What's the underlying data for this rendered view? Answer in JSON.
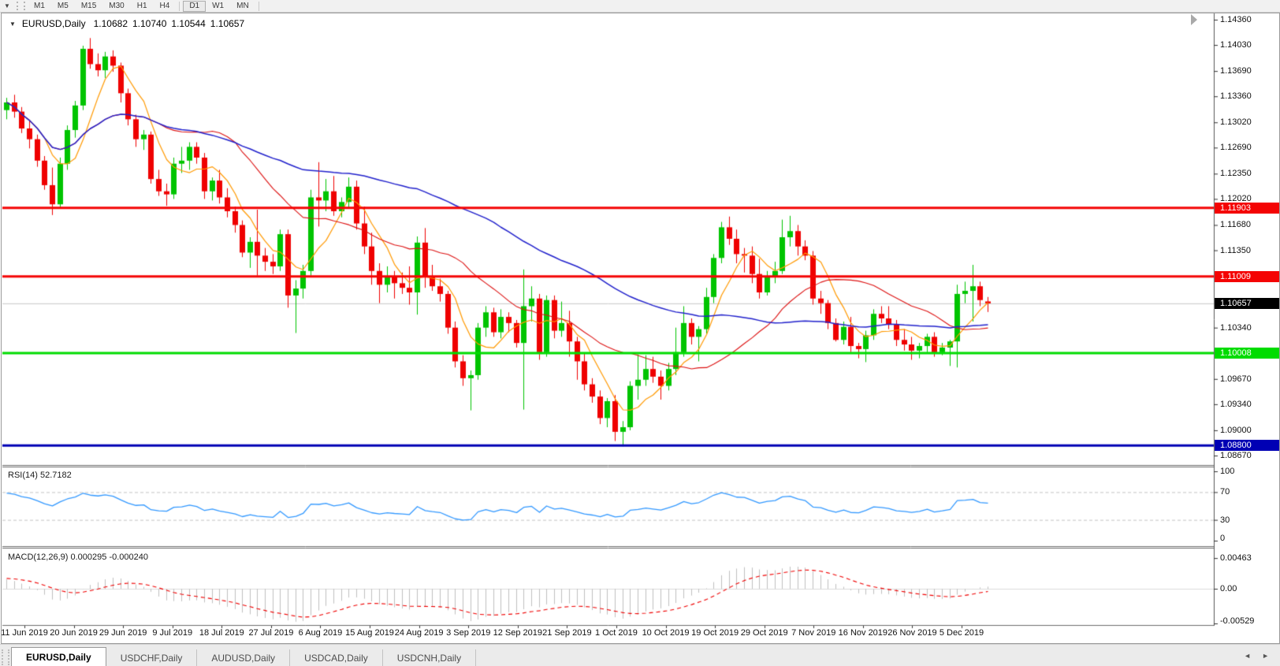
{
  "toolbar": {
    "dropdown_icon": "▼",
    "timeframes": [
      {
        "label": "M1",
        "active": false
      },
      {
        "label": "M5",
        "active": false
      },
      {
        "label": "M15",
        "active": false
      },
      {
        "label": "M30",
        "active": false
      },
      {
        "label": "H1",
        "active": false
      },
      {
        "label": "H4",
        "active": false
      },
      {
        "label": "D1",
        "active": true
      },
      {
        "label": "W1",
        "active": false
      },
      {
        "label": "MN",
        "active": false
      }
    ]
  },
  "chart": {
    "title": "EURUSD,Daily",
    "title_icon": "▼",
    "ohlc": {
      "open": "1.10682",
      "high": "1.10740",
      "low": "1.10544",
      "close": "1.10657"
    }
  },
  "rsi_panel": {
    "label": "RSI(14)",
    "value": "52.7182",
    "axis_labels": [
      "100",
      "70",
      "30",
      "0"
    ],
    "axis_values": [
      100,
      70,
      30,
      0
    ],
    "levels": [
      70,
      30
    ],
    "line_color": "#3399ff"
  },
  "macd_panel": {
    "label": "MACD(12,26,9)",
    "value_main": "0.000295",
    "value_signal": "-0.000240",
    "axis_labels": [
      "0.00463",
      "0.00",
      "-0.00529"
    ],
    "axis_values": [
      0.00463,
      0.0,
      -0.00529
    ],
    "histogram_color": "#c0c0c0",
    "signal_color": "#f00000"
  },
  "tabs": [
    {
      "label": "EURUSD,Daily",
      "active": true
    },
    {
      "label": "USDCHF,Daily",
      "active": false
    },
    {
      "label": "AUDUSD,Daily",
      "active": false
    },
    {
      "label": "USDCAD,Daily",
      "active": false
    },
    {
      "label": "USDCNH,Daily",
      "active": false
    }
  ],
  "tab_arrows": {
    "left": "◄",
    "right": "►"
  },
  "colors": {
    "bull": "#00c400",
    "bear": "#ef0000",
    "ma_fast": "#ff9900",
    "ma_mid": "#dd1111",
    "ma_slow": "#2121cc",
    "resistance": "#f40404",
    "support_green": "#00dc00",
    "support_navy": "#0000b4",
    "current_line": "#c8c8c8",
    "current_label_bg": "#000000",
    "rsi_level_dash": "#c4c4c4",
    "pane_border": "#6e6e6e"
  },
  "chart_data": {
    "type": "candlestick",
    "symbol": "EURUSD",
    "timeframe": "Daily",
    "ylim": [
      1.0856,
      1.1442
    ],
    "y_ticks": [
      "1.14360",
      "1.14030",
      "1.13690",
      "1.13360",
      "1.13020",
      "1.12690",
      "1.12350",
      "1.12020",
      "1.11680",
      "1.11350",
      "1.10340",
      "1.09670",
      "1.09340",
      "1.09000",
      "1.08670"
    ],
    "x_labels": [
      "11 Jun 2019",
      "20 Jun 2019",
      "29 Jun 2019",
      "9 Jul 2019",
      "18 Jul 2019",
      "27 Jul 2019",
      "6 Aug 2019",
      "15 Aug 2019",
      "24 Aug 2019",
      "3 Sep 2019",
      "12 Sep 2019",
      "21 Sep 2019",
      "1 Oct 2019",
      "10 Oct 2019",
      "19 Oct 2019",
      "29 Oct 2019",
      "7 Nov 2019",
      "16 Nov 2019",
      "26 Nov 2019",
      "5 Dec 2019"
    ],
    "hlines": [
      {
        "price": 1.11903,
        "label": "1.11903",
        "color": "#f40404",
        "width": 3
      },
      {
        "price": 1.11009,
        "label": "1.11009",
        "color": "#f40404",
        "width": 3
      },
      {
        "price": 1.10008,
        "label": "1.10008",
        "color": "#00dc00",
        "width": 3
      },
      {
        "price": 1.088,
        "label": "1.08800",
        "color": "#0000b4",
        "width": 3
      }
    ],
    "current_price": {
      "value": 1.10657,
      "label": "1.10657"
    },
    "moving_averages": [
      {
        "period": 6,
        "color": "#ff9900"
      },
      {
        "period": 21,
        "color": "#dd1111"
      },
      {
        "period": 55,
        "color": "#2121cc"
      }
    ],
    "rsi": {
      "period": 14,
      "current": 52.7182
    },
    "macd": {
      "fast": 12,
      "slow": 26,
      "signal": 9,
      "current": 0.000295,
      "current_signal": -0.00024
    },
    "candles": [
      [
        1.1318,
        1.1334,
        1.1306,
        1.1328
      ],
      [
        1.1328,
        1.1338,
        1.1308,
        1.1316
      ],
      [
        1.1316,
        1.1322,
        1.1288,
        1.1294
      ],
      [
        1.1294,
        1.1304,
        1.1268,
        1.128
      ],
      [
        1.128,
        1.1286,
        1.1244,
        1.1252
      ],
      [
        1.1252,
        1.1258,
        1.1214,
        1.122
      ],
      [
        1.122,
        1.1243,
        1.1181,
        1.1195
      ],
      [
        1.1195,
        1.1256,
        1.119,
        1.1248
      ],
      [
        1.1248,
        1.1298,
        1.124,
        1.1292
      ],
      [
        1.1292,
        1.133,
        1.1282,
        1.1324
      ],
      [
        1.1324,
        1.1402,
        1.1318,
        1.1398
      ],
      [
        1.1398,
        1.1412,
        1.1372,
        1.1378
      ],
      [
        1.1378,
        1.1392,
        1.1362,
        1.137
      ],
      [
        1.137,
        1.1394,
        1.136,
        1.1388
      ],
      [
        1.1388,
        1.1396,
        1.1368,
        1.1376
      ],
      [
        1.1376,
        1.138,
        1.1328,
        1.134
      ],
      [
        1.134,
        1.1346,
        1.1298,
        1.1306
      ],
      [
        1.1306,
        1.1312,
        1.127,
        1.128
      ],
      [
        1.128,
        1.1292,
        1.1266,
        1.1286
      ],
      [
        1.1286,
        1.129,
        1.1222,
        1.1228
      ],
      [
        1.1228,
        1.124,
        1.1206,
        1.1212
      ],
      [
        1.1212,
        1.1222,
        1.1193,
        1.1208
      ],
      [
        1.1208,
        1.1256,
        1.1202,
        1.1248
      ],
      [
        1.1248,
        1.127,
        1.1236,
        1.1252
      ],
      [
        1.1252,
        1.1276,
        1.124,
        1.127
      ],
      [
        1.127,
        1.1276,
        1.1248,
        1.1256
      ],
      [
        1.1256,
        1.1262,
        1.1202,
        1.1212
      ],
      [
        1.1212,
        1.123,
        1.12,
        1.1226
      ],
      [
        1.1226,
        1.124,
        1.1196,
        1.1204
      ],
      [
        1.1204,
        1.1216,
        1.1178,
        1.1186
      ],
      [
        1.1186,
        1.1192,
        1.1158,
        1.1168
      ],
      [
        1.1168,
        1.1174,
        1.1126,
        1.1132
      ],
      [
        1.1132,
        1.1152,
        1.1112,
        1.1146
      ],
      [
        1.1146,
        1.1188,
        1.1102,
        1.1128
      ],
      [
        1.1128,
        1.1138,
        1.1108,
        1.112
      ],
      [
        1.112,
        1.113,
        1.1104,
        1.1114
      ],
      [
        1.1114,
        1.1162,
        1.1108,
        1.1156
      ],
      [
        1.1156,
        1.1162,
        1.106,
        1.1076
      ],
      [
        1.1076,
        1.1096,
        1.1027,
        1.1085
      ],
      [
        1.1085,
        1.1116,
        1.1072,
        1.1108
      ],
      [
        1.1108,
        1.1214,
        1.1102,
        1.1204
      ],
      [
        1.1204,
        1.125,
        1.1166,
        1.12
      ],
      [
        1.12,
        1.1228,
        1.1186,
        1.1212
      ],
      [
        1.1212,
        1.1232,
        1.118,
        1.1186
      ],
      [
        1.1186,
        1.1204,
        1.1178,
        1.1198
      ],
      [
        1.1198,
        1.123,
        1.119,
        1.1218
      ],
      [
        1.1218,
        1.1226,
        1.1162,
        1.117
      ],
      [
        1.117,
        1.1192,
        1.113,
        1.114
      ],
      [
        1.114,
        1.1158,
        1.109,
        1.1108
      ],
      [
        1.1108,
        1.1118,
        1.1066,
        1.109
      ],
      [
        1.109,
        1.1114,
        1.108,
        1.11
      ],
      [
        1.11,
        1.1108,
        1.1072,
        1.1092
      ],
      [
        1.1092,
        1.1106,
        1.1078,
        1.1086
      ],
      [
        1.1086,
        1.1114,
        1.1064,
        1.108
      ],
      [
        1.108,
        1.1153,
        1.1051,
        1.1145
      ],
      [
        1.1145,
        1.1164,
        1.1086,
        1.11
      ],
      [
        1.11,
        1.1116,
        1.1082,
        1.1088
      ],
      [
        1.1088,
        1.1098,
        1.1068,
        1.1078
      ],
      [
        1.1078,
        1.1082,
        1.1026,
        1.1034
      ],
      [
        1.1034,
        1.1042,
        1.0982,
        1.099
      ],
      [
        1.099,
        1.0998,
        1.0958,
        1.0968
      ],
      [
        1.0968,
        1.0978,
        1.0926,
        1.0972
      ],
      [
        1.0972,
        1.104,
        1.0966,
        1.1034
      ],
      [
        1.1034,
        1.1062,
        1.1022,
        1.1054
      ],
      [
        1.1054,
        1.106,
        1.1022,
        1.1028
      ],
      [
        1.1028,
        1.1058,
        1.102,
        1.1048
      ],
      [
        1.1048,
        1.1054,
        1.1028,
        1.104
      ],
      [
        1.104,
        1.1044,
        1.1008,
        1.1014
      ],
      [
        1.1014,
        1.111,
        1.0927,
        1.1062
      ],
      [
        1.1062,
        1.1088,
        1.1042,
        1.1072
      ],
      [
        1.1072,
        1.1078,
        1.0992,
        1.1002
      ],
      [
        1.1002,
        1.1076,
        1.0996,
        1.107
      ],
      [
        1.107,
        1.1076,
        1.102,
        1.103
      ],
      [
        1.103,
        1.1068,
        1.1022,
        1.104
      ],
      [
        1.104,
        1.1056,
        1.0996,
        1.1016
      ],
      [
        1.1016,
        1.1022,
        1.0966,
        1.099
      ],
      [
        1.099,
        1.1,
        1.0952,
        1.096
      ],
      [
        1.096,
        1.0968,
        1.0936,
        1.0944
      ],
      [
        1.0944,
        1.0952,
        1.0908,
        1.0916
      ],
      [
        1.0916,
        1.0942,
        1.0904,
        1.0938
      ],
      [
        1.0938,
        1.0946,
        1.0886,
        1.0898
      ],
      [
        1.0898,
        1.0912,
        1.0879,
        1.0904
      ],
      [
        1.0904,
        1.0964,
        1.09,
        1.0958
      ],
      [
        1.0958,
        1.0999,
        1.094,
        1.0966
      ],
      [
        1.0966,
        1.0998,
        1.0958,
        1.098
      ],
      [
        1.098,
        1.0996,
        1.0962,
        1.097
      ],
      [
        1.097,
        1.0978,
        1.094,
        1.0958
      ],
      [
        1.0958,
        1.0988,
        1.0952,
        1.098
      ],
      [
        1.098,
        1.1034,
        1.0972,
        1.1002
      ],
      [
        1.1002,
        1.1062,
        1.0996,
        1.104
      ],
      [
        1.104,
        1.1046,
        1.1012,
        1.1022
      ],
      [
        1.1022,
        1.1036,
        1.099,
        1.1032
      ],
      [
        1.1032,
        1.1086,
        1.1026,
        1.1074
      ],
      [
        1.1074,
        1.113,
        1.1066,
        1.1125
      ],
      [
        1.1125,
        1.1172,
        1.1118,
        1.1165
      ],
      [
        1.1165,
        1.1179,
        1.1142,
        1.115
      ],
      [
        1.115,
        1.1162,
        1.1118,
        1.113
      ],
      [
        1.113,
        1.1138,
        1.1106,
        1.1128
      ],
      [
        1.1128,
        1.114,
        1.1092,
        1.1104
      ],
      [
        1.1104,
        1.1124,
        1.1072,
        1.108
      ],
      [
        1.108,
        1.1108,
        1.1076,
        1.11
      ],
      [
        1.11,
        1.112,
        1.1092,
        1.1108
      ],
      [
        1.1108,
        1.1175,
        1.1104,
        1.1152
      ],
      [
        1.1152,
        1.118,
        1.114,
        1.116
      ],
      [
        1.116,
        1.1168,
        1.1128,
        1.114
      ],
      [
        1.114,
        1.1148,
        1.1122,
        1.1128
      ],
      [
        1.1128,
        1.1134,
        1.1064,
        1.1072
      ],
      [
        1.1072,
        1.1082,
        1.1052,
        1.1066
      ],
      [
        1.1066,
        1.107,
        1.1032,
        1.104
      ],
      [
        1.104,
        1.1046,
        1.1016,
        1.1018
      ],
      [
        1.1018,
        1.1042,
        1.1012,
        1.1035
      ],
      [
        1.1035,
        1.1048,
        1.1002,
        1.101
      ],
      [
        1.101,
        1.1014,
        1.0994,
        1.1006
      ],
      [
        1.1006,
        1.103,
        1.0989,
        1.1024
      ],
      [
        1.1024,
        1.1058,
        1.1018,
        1.1052
      ],
      [
        1.1052,
        1.1062,
        1.104,
        1.1046
      ],
      [
        1.1046,
        1.1062,
        1.1032,
        1.1038
      ],
      [
        1.1038,
        1.1044,
        1.101,
        1.1018
      ],
      [
        1.1018,
        1.1032,
        1.1004,
        1.1012
      ],
      [
        1.1012,
        1.1022,
        1.0992,
        1.1004
      ],
      [
        1.1004,
        1.1014,
        1.0994,
        1.101
      ],
      [
        1.101,
        1.1026,
        1.1002,
        1.1022
      ],
      [
        1.1022,
        1.1028,
        1.0996,
        1.1002
      ],
      [
        1.1002,
        1.1014,
        1.0998,
        1.1008
      ],
      [
        1.1008,
        1.1018,
        1.0984,
        1.1016
      ],
      [
        1.1016,
        1.109,
        1.0982,
        1.1078
      ],
      [
        1.1078,
        1.1094,
        1.1066,
        1.1082
      ],
      [
        1.1082,
        1.1116,
        1.1042,
        1.1088
      ],
      [
        1.1088,
        1.1094,
        1.1062,
        1.107
      ],
      [
        1.10682,
        1.1074,
        1.10544,
        1.10657
      ]
    ]
  }
}
